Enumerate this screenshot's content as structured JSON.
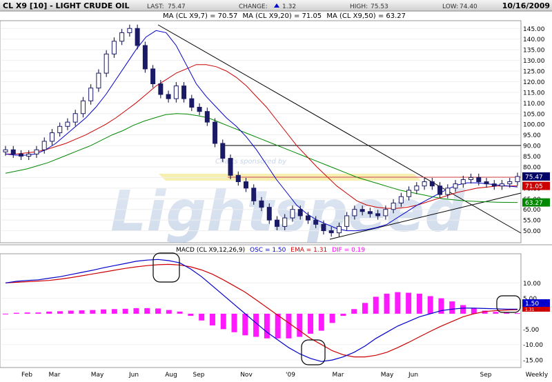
{
  "header": {
    "symbol": "CL X9 [10] - LIGHT CRUDE OIL",
    "last_label": "LAST:",
    "last_value": "75.47",
    "change_label": "CHANGE:",
    "change_value": "1.32",
    "high_label": "HIGH:",
    "high_value": "75.53",
    "low_label": "LOW:",
    "low_value": "74.40",
    "date": "10/16/2009",
    "up_color": "#0000cc"
  },
  "ma_legend": [
    {
      "text": "MA (CL X9,7) = 70.57",
      "color": "#0000cc"
    },
    {
      "text": "MA (CL X9,20) = 71.05",
      "color": "#cc0000"
    },
    {
      "text": "MA (CL X9,50) = 63.27",
      "color": "#008800"
    }
  ],
  "price_badges": [
    {
      "text": "75.47",
      "value": 75.47,
      "color": "#000066"
    },
    {
      "text": "71.05",
      "value": 71.05,
      "color": "#cc0000"
    },
    {
      "text": "63.27",
      "value": 63.27,
      "color": "#008800"
    }
  ],
  "watermark": {
    "top": "Charts sponsored by",
    "brand": "Lightspeed"
  },
  "macd": {
    "label": "MACD (CL X9,12,26,9)",
    "osc": "OSC = 1.50",
    "osc_color": "#0000cc",
    "ema": "EMA = 1.31",
    "ema_color": "#cc0000",
    "dif": "DIF = 0.19",
    "dif_color": "#ff00ff",
    "badge_osc": "1.50",
    "badge_ema": "1.31"
  },
  "chart_data": [
    {
      "type": "candlestick",
      "title": "CL X9 [10] - LIGHT CRUDE OIL",
      "ylim": [
        45,
        148
      ],
      "yticks": [
        50,
        55,
        60,
        65,
        70,
        75,
        80,
        85,
        90,
        95,
        100,
        105,
        110,
        115,
        120,
        125,
        130,
        135,
        140,
        145
      ],
      "x_labels": [
        "Feb",
        "Mar",
        "May",
        "Jun",
        "Aug",
        "Sep",
        "Nov",
        "'09",
        "Mar",
        "May",
        "Jun",
        "Sep",
        "Weekly"
      ],
      "close": [
        88,
        86,
        85,
        86,
        88,
        92,
        96,
        99,
        101,
        105,
        111,
        117,
        124,
        133,
        139,
        143,
        145,
        137,
        126,
        119,
        114,
        112,
        118,
        112,
        108,
        106,
        101,
        91,
        84,
        76,
        73,
        70,
        64,
        61,
        55,
        52,
        56,
        60,
        57,
        55,
        53,
        50,
        49,
        52,
        57,
        60,
        59,
        58,
        57,
        60,
        63,
        66,
        69,
        71,
        73,
        71,
        67,
        70,
        72,
        74,
        75,
        73,
        72,
        71,
        72,
        73,
        75.47
      ],
      "ma7": [
        86,
        85.5,
        85.5,
        86,
        88,
        91,
        95,
        99,
        103,
        108,
        114,
        121,
        128,
        135,
        141,
        144,
        143,
        137,
        128,
        119,
        113,
        108,
        103,
        99,
        94,
        88,
        81,
        74,
        68,
        62,
        58,
        55,
        53,
        51,
        50,
        50,
        50.5,
        51.5,
        53,
        56,
        59,
        62,
        64.5,
        67,
        69.5,
        71.5,
        72.5,
        72.5,
        72,
        71.5,
        71,
        70.57
      ],
      "ma20": [
        86,
        86,
        86.5,
        87,
        88,
        89.5,
        91,
        93,
        95,
        97.5,
        100,
        103,
        106.5,
        110,
        114,
        118,
        121,
        124,
        126,
        128,
        128,
        127,
        125,
        122,
        118,
        113,
        108,
        102,
        96,
        90,
        85,
        80,
        75.5,
        71,
        67.5,
        64,
        62,
        61,
        60.5,
        60.5,
        61,
        62,
        63.5,
        65,
        66.5,
        68,
        69,
        70,
        70.5,
        71,
        71,
        71.05
      ],
      "ma50": [
        77,
        78,
        79,
        80.5,
        82,
        84,
        86,
        88,
        90,
        92.5,
        95,
        97,
        99.5,
        101.5,
        103,
        104.5,
        105,
        104.8,
        104,
        103,
        101,
        99,
        97,
        95,
        93,
        91,
        89,
        87,
        85,
        83,
        81,
        79,
        77,
        75,
        73.5,
        72,
        70.5,
        69,
        68,
        67,
        66,
        65,
        64.5,
        64,
        63.8,
        63.6,
        63.4,
        63.3,
        63.27
      ]
    },
    {
      "type": "line",
      "title": "MACD (CL X9,12,26,9)",
      "ylim": [
        -17,
        19
      ],
      "yticks": [
        -15,
        -10,
        -5,
        0,
        5,
        10
      ],
      "series": [
        {
          "name": "OSC",
          "values": [
            10,
            10.5,
            10.8,
            11,
            11.5,
            12,
            12.7,
            13.4,
            14.1,
            14.9,
            15.6,
            16.3,
            17,
            17.4,
            17.6,
            17.2,
            16.5,
            14.5,
            12,
            9,
            6,
            3,
            0,
            -3,
            -6,
            -8.5,
            -11,
            -13,
            -14.5,
            -15.5,
            -15,
            -14,
            -12.5,
            -10.5,
            -8,
            -6,
            -4,
            -2.5,
            -1,
            0,
            1,
            1.5,
            1.8,
            1.8,
            1.7,
            1.6,
            1.5,
            1.5
          ]
        },
        {
          "name": "EMA",
          "values": [
            10,
            10.2,
            10.4,
            10.6,
            10.8,
            11.2,
            11.7,
            12.3,
            12.9,
            13.5,
            14.1,
            14.7,
            15.2,
            15.6,
            15.9,
            16,
            15.8,
            15.2,
            14.2,
            12.8,
            11,
            9,
            7,
            4.5,
            2,
            -0.5,
            -3,
            -5.5,
            -8,
            -10,
            -12,
            -13.3,
            -14,
            -14,
            -13.5,
            -12.5,
            -11,
            -9.3,
            -7.5,
            -5.7,
            -4,
            -2.5,
            -1,
            0,
            0.7,
            1,
            1.2,
            1.31
          ]
        },
        {
          "name": "DIF",
          "values": [
            0,
            0.3,
            0.4,
            0.4,
            0.7,
            0.8,
            1,
            1.1,
            1.2,
            1.4,
            1.5,
            1.6,
            1.8,
            1.8,
            1.7,
            1.2,
            0.7,
            -0.7,
            -2.2,
            -3.8,
            -5,
            -6,
            -7,
            -7.5,
            -8,
            -8,
            -8,
            -7.5,
            -6.5,
            -5.5,
            -3,
            -0.7,
            1.5,
            3.5,
            5.5,
            6.5,
            7,
            6.8,
            6.5,
            5.7,
            5,
            4,
            2.8,
            1.8,
            1,
            0.6,
            0.3,
            0.19
          ]
        }
      ]
    }
  ]
}
